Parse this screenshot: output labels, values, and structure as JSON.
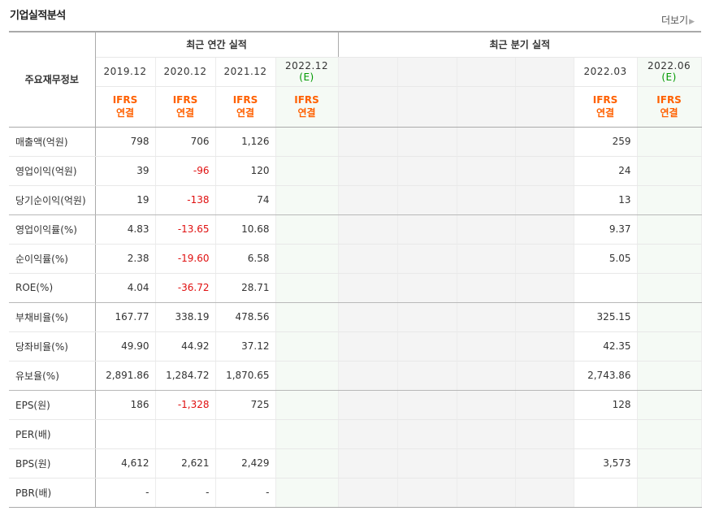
{
  "section_title": "기업실적분석",
  "more_link": "더보기",
  "header": {
    "row_label": "주요재무정보",
    "annual_group": "최근 연간 실적",
    "quarter_group": "최근 분기 실적",
    "annual_periods": [
      {
        "date": "2019.12",
        "tag": ""
      },
      {
        "date": "2020.12",
        "tag": ""
      },
      {
        "date": "2021.12",
        "tag": ""
      },
      {
        "date": "2022.12",
        "tag": "(E)"
      }
    ],
    "quarter_periods": [
      {
        "date": "",
        "tag": ""
      },
      {
        "date": "",
        "tag": ""
      },
      {
        "date": "",
        "tag": ""
      },
      {
        "date": "",
        "tag": ""
      },
      {
        "date": "2022.03",
        "tag": ""
      },
      {
        "date": "2022.06",
        "tag": "(E)"
      }
    ],
    "basis_line1": "IFRS",
    "basis_line2": "연결"
  },
  "rows": [
    {
      "label": "매출액(억원)",
      "annual": [
        "798",
        "706",
        "1,126",
        ""
      ],
      "quarter": [
        "",
        "",
        "",
        "",
        "259",
        ""
      ]
    },
    {
      "label": "영업이익(억원)",
      "annual": [
        "39",
        "-96",
        "120",
        ""
      ],
      "quarter": [
        "",
        "",
        "",
        "",
        "24",
        ""
      ]
    },
    {
      "label": "당기순이익(억원)",
      "annual": [
        "19",
        "-138",
        "74",
        ""
      ],
      "quarter": [
        "",
        "",
        "",
        "",
        "13",
        ""
      ]
    },
    {
      "label": "영업이익률(%)",
      "annual": [
        "4.83",
        "-13.65",
        "10.68",
        ""
      ],
      "quarter": [
        "",
        "",
        "",
        "",
        "9.37",
        ""
      ]
    },
    {
      "label": "순이익률(%)",
      "annual": [
        "2.38",
        "-19.60",
        "6.58",
        ""
      ],
      "quarter": [
        "",
        "",
        "",
        "",
        "5.05",
        ""
      ]
    },
    {
      "label": "ROE(%)",
      "annual": [
        "4.04",
        "-36.72",
        "28.71",
        ""
      ],
      "quarter": [
        "",
        "",
        "",
        "",
        "",
        ""
      ]
    },
    {
      "label": "부채비율(%)",
      "annual": [
        "167.77",
        "338.19",
        "478.56",
        ""
      ],
      "quarter": [
        "",
        "",
        "",
        "",
        "325.15",
        ""
      ]
    },
    {
      "label": "당좌비율(%)",
      "annual": [
        "49.90",
        "44.92",
        "37.12",
        ""
      ],
      "quarter": [
        "",
        "",
        "",
        "",
        "42.35",
        ""
      ]
    },
    {
      "label": "유보율(%)",
      "annual": [
        "2,891.86",
        "1,284.72",
        "1,870.65",
        ""
      ],
      "quarter": [
        "",
        "",
        "",
        "",
        "2,743.86",
        ""
      ]
    },
    {
      "label": "EPS(원)",
      "annual": [
        "186",
        "-1,328",
        "725",
        ""
      ],
      "quarter": [
        "",
        "",
        "",
        "",
        "128",
        ""
      ]
    },
    {
      "label": "PER(배)",
      "annual": [
        "",
        "",
        "",
        ""
      ],
      "quarter": [
        "",
        "",
        "",
        "",
        "",
        ""
      ]
    },
    {
      "label": "BPS(원)",
      "annual": [
        "4,612",
        "2,621",
        "2,429",
        ""
      ],
      "quarter": [
        "",
        "",
        "",
        "",
        "3,573",
        ""
      ]
    },
    {
      "label": "PBR(배)",
      "annual": [
        "-",
        "-",
        "-",
        ""
      ],
      "quarter": [
        "",
        "",
        "",
        "",
        "",
        ""
      ]
    }
  ],
  "colors": {
    "basis": "#ff6000",
    "negative": "#e01010",
    "estimate_tag": "#009900",
    "estimate_bg": "#f5faf5"
  }
}
